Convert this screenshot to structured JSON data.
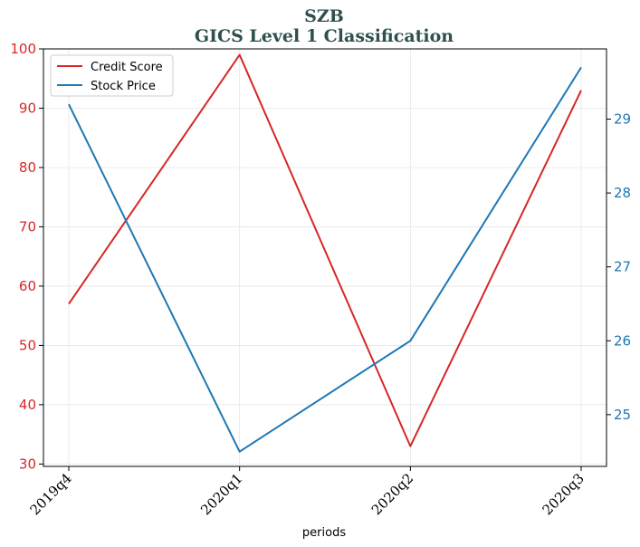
{
  "chart_data": {
    "type": "line",
    "title": "SZB",
    "subtitle": "GICS Level 1 Classification",
    "xlabel": "periods",
    "categories": [
      "2019q4",
      "2020q1",
      "2020q2",
      "2020q3"
    ],
    "series": [
      {
        "name": "Credit Score",
        "axis": "left",
        "color": "#d62728",
        "values": [
          57,
          99,
          33,
          93
        ]
      },
      {
        "name": "Stock Price",
        "axis": "right",
        "color": "#1f77b4",
        "values": [
          29.2,
          24.5,
          26.0,
          29.7
        ]
      }
    ],
    "y_left": {
      "ylim": [
        29.6,
        100
      ],
      "ticks": [
        30,
        40,
        50,
        60,
        70,
        80,
        90,
        100
      ],
      "color": "#d62728"
    },
    "y_right": {
      "ylim": [
        24.3,
        29.95
      ],
      "ticks": [
        25,
        26,
        27,
        28,
        29
      ],
      "color": "#1f77b4"
    },
    "grid": true,
    "legend": "top-left",
    "title_color": "#2f4f4f"
  }
}
